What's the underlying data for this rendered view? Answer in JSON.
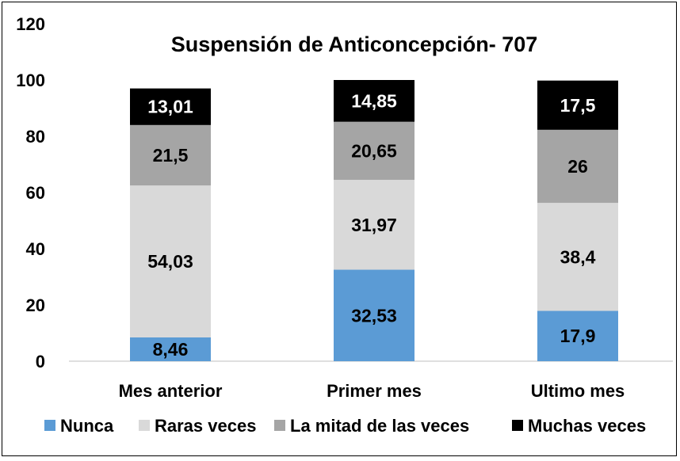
{
  "chart_data": {
    "type": "bar",
    "stacked": true,
    "title": "Suspensión de Anticoncepción- 707",
    "categories": [
      "Mes anterior",
      "Primer mes",
      "Ultimo mes"
    ],
    "series": [
      {
        "name": "Nunca",
        "color": "#5b9bd5",
        "values": [
          8.46,
          32.53,
          17.9
        ],
        "labels": [
          "8,46",
          "32,53",
          "17,9"
        ],
        "label_color": "#000000"
      },
      {
        "name": "Raras veces",
        "color": "#d9d9d9",
        "values": [
          54.03,
          31.97,
          38.4
        ],
        "labels": [
          "54,03",
          "31,97",
          "38,4"
        ],
        "label_color": "#000000"
      },
      {
        "name": "La mitad de las veces",
        "color": "#a5a5a5",
        "values": [
          21.5,
          20.65,
          26
        ],
        "labels": [
          "21,5",
          "20,65",
          "26"
        ],
        "label_color": "#000000"
      },
      {
        "name": "Muchas veces",
        "color": "#000000",
        "values": [
          13.01,
          14.85,
          17.5
        ],
        "labels": [
          "13,01",
          "14,85",
          "17,5"
        ],
        "label_color": "#ffffff"
      }
    ],
    "ylim": [
      0,
      120
    ],
    "yticks": [
      0,
      20,
      40,
      60,
      80,
      100,
      120
    ],
    "grid": false,
    "legend_position": "bottom"
  }
}
